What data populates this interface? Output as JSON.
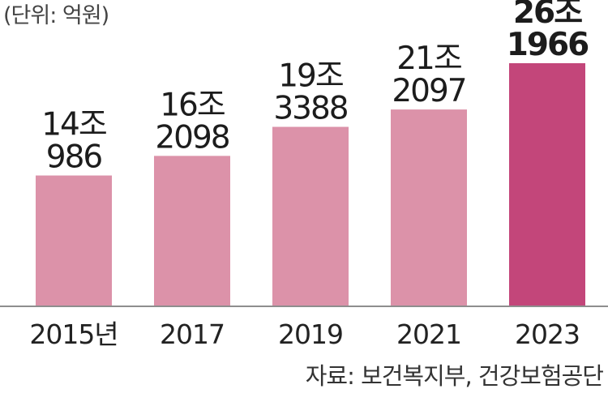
{
  "unit_label": "(단위: 억원)",
  "source": "자료: 보건복지부, 건강보험공단",
  "colors": {
    "bar": "#dc92a9",
    "bar_highlight": "#c3467a",
    "axis": "#8e8e8e"
  },
  "chart_data": {
    "type": "bar",
    "title": "",
    "xlabel": "",
    "ylabel": "",
    "categories": [
      "2015년",
      "2017",
      "2019",
      "2021",
      "2023"
    ],
    "values": [
      140986,
      162098,
      193388,
      212097,
      261966
    ],
    "value_labels": [
      [
        "14조",
        "986"
      ],
      [
        "16조",
        "2098"
      ],
      [
        "19조",
        "3388"
      ],
      [
        "21조",
        "2097"
      ],
      [
        "26조",
        "1966"
      ]
    ],
    "highlight_index": 4,
    "ylim": [
      0,
      261966
    ],
    "grid": false,
    "legend": "none"
  }
}
